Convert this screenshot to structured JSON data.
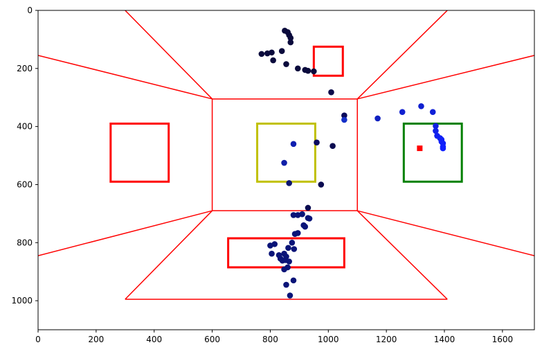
{
  "chart_data": {
    "type": "scatter",
    "title": "",
    "xlabel": "",
    "ylabel": "",
    "xlim": [
      0,
      1710
    ],
    "ylim": [
      1100,
      0
    ],
    "y_inverted": true,
    "grid": false,
    "xticks": [
      0,
      200,
      400,
      600,
      800,
      1000,
      1200,
      1400,
      1600
    ],
    "yticks": [
      0,
      200,
      400,
      600,
      800,
      1000
    ],
    "room_lines": {
      "color": "#ff0000",
      "segments": [
        [
          [
            0,
            155
          ],
          [
            600,
            305
          ]
        ],
        [
          [
            0,
            845
          ],
          [
            600,
            690
          ]
        ],
        [
          [
            300,
            0
          ],
          [
            600,
            305
          ]
        ],
        [
          [
            1410,
            0
          ],
          [
            1100,
            305
          ]
        ],
        [
          [
            1710,
            155
          ],
          [
            1100,
            305
          ]
        ],
        [
          [
            1710,
            845
          ],
          [
            1100,
            690
          ]
        ],
        [
          [
            300,
            995
          ],
          [
            600,
            690
          ]
        ],
        [
          [
            1410,
            995
          ],
          [
            1100,
            690
          ]
        ],
        [
          [
            300,
            995
          ],
          [
            1410,
            995
          ]
        ],
        [
          [
            600,
            305
          ],
          [
            1100,
            305
          ]
        ],
        [
          [
            600,
            690
          ],
          [
            1100,
            690
          ]
        ],
        [
          [
            600,
            305
          ],
          [
            600,
            690
          ]
        ],
        [
          [
            1100,
            305
          ],
          [
            1100,
            690
          ]
        ]
      ]
    },
    "target_boxes": [
      {
        "color": "#ff0000",
        "x0": 250,
        "y0": 390,
        "x1": 450,
        "y1": 590
      },
      {
        "color": "#ff0000",
        "x0": 950,
        "y0": 125,
        "x1": 1050,
        "y1": 225
      },
      {
        "color": "#ff0000",
        "x0": 655,
        "y0": 785,
        "x1": 1055,
        "y1": 885
      },
      {
        "color": "#c0c000",
        "x0": 755,
        "y0": 390,
        "x1": 955,
        "y1": 590
      },
      {
        "color": "#008000",
        "x0": 1260,
        "y0": 390,
        "x1": 1460,
        "y1": 590
      }
    ],
    "marker": {
      "color": "#ff0000",
      "shape": "square",
      "x": 1315,
      "y": 475
    },
    "points": [
      {
        "x": 850,
        "y": 70,
        "color": "#0a0a3c"
      },
      {
        "x": 860,
        "y": 75,
        "color": "#0a0a3c"
      },
      {
        "x": 865,
        "y": 85,
        "color": "#0a0a3c"
      },
      {
        "x": 870,
        "y": 95,
        "color": "#0a0a3c"
      },
      {
        "x": 870,
        "y": 110,
        "color": "#0a0a3c"
      },
      {
        "x": 840,
        "y": 140,
        "color": "#0a0a3c"
      },
      {
        "x": 805,
        "y": 145,
        "color": "#0a0a3c"
      },
      {
        "x": 790,
        "y": 148,
        "color": "#0a0a3c"
      },
      {
        "x": 770,
        "y": 150,
        "color": "#0a0a3c"
      },
      {
        "x": 810,
        "y": 172,
        "color": "#0a0a3c"
      },
      {
        "x": 855,
        "y": 185,
        "color": "#0a0a3c"
      },
      {
        "x": 895,
        "y": 200,
        "color": "#0a0a3c"
      },
      {
        "x": 920,
        "y": 205,
        "color": "#0a0a3c"
      },
      {
        "x": 930,
        "y": 208,
        "color": "#0a0a3c"
      },
      {
        "x": 950,
        "y": 210,
        "color": "#0a0a3c"
      },
      {
        "x": 1010,
        "y": 282,
        "color": "#0a0a4a"
      },
      {
        "x": 1055,
        "y": 362,
        "color": "#0a0a5a"
      },
      {
        "x": 1055,
        "y": 377,
        "color": "#1530c8"
      },
      {
        "x": 1170,
        "y": 372,
        "color": "#1020c0"
      },
      {
        "x": 1255,
        "y": 350,
        "color": "#1020d0"
      },
      {
        "x": 1320,
        "y": 330,
        "color": "#1020d0"
      },
      {
        "x": 1360,
        "y": 350,
        "color": "#1020d8"
      },
      {
        "x": 1370,
        "y": 398,
        "color": "#1020e0"
      },
      {
        "x": 1370,
        "y": 415,
        "color": "#1020e8"
      },
      {
        "x": 1375,
        "y": 432,
        "color": "#1020f0"
      },
      {
        "x": 1385,
        "y": 440,
        "color": "#1020f0"
      },
      {
        "x": 1390,
        "y": 445,
        "color": "#1020f8"
      },
      {
        "x": 1395,
        "y": 458,
        "color": "#1020f8"
      },
      {
        "x": 1395,
        "y": 470,
        "color": "#1020ff"
      },
      {
        "x": 1390,
        "y": 452,
        "color": "#1020f8"
      },
      {
        "x": 1395,
        "y": 475,
        "color": "#1020ff"
      },
      {
        "x": 880,
        "y": 460,
        "color": "#1020b0"
      },
      {
        "x": 960,
        "y": 455,
        "color": "#0a0a60"
      },
      {
        "x": 1015,
        "y": 467,
        "color": "#0a0a50"
      },
      {
        "x": 848,
        "y": 525,
        "color": "#1020a8"
      },
      {
        "x": 865,
        "y": 595,
        "color": "#0a1470"
      },
      {
        "x": 975,
        "y": 600,
        "color": "#0a0a50"
      },
      {
        "x": 930,
        "y": 680,
        "color": "#0a0a50"
      },
      {
        "x": 880,
        "y": 705,
        "color": "#0a1478"
      },
      {
        "x": 895,
        "y": 705,
        "color": "#0a1478"
      },
      {
        "x": 910,
        "y": 702,
        "color": "#0a1478"
      },
      {
        "x": 930,
        "y": 715,
        "color": "#0a1478"
      },
      {
        "x": 935,
        "y": 717,
        "color": "#0a1478"
      },
      {
        "x": 915,
        "y": 740,
        "color": "#0a1478"
      },
      {
        "x": 920,
        "y": 745,
        "color": "#0a1478"
      },
      {
        "x": 895,
        "y": 767,
        "color": "#0a1478"
      },
      {
        "x": 885,
        "y": 770,
        "color": "#0a1478"
      },
      {
        "x": 875,
        "y": 800,
        "color": "#0a1478"
      },
      {
        "x": 815,
        "y": 805,
        "color": "#0a1478"
      },
      {
        "x": 800,
        "y": 810,
        "color": "#0a1478"
      },
      {
        "x": 882,
        "y": 822,
        "color": "#0a1478"
      },
      {
        "x": 862,
        "y": 818,
        "color": "#0a1478"
      },
      {
        "x": 805,
        "y": 838,
        "color": "#0a1478"
      },
      {
        "x": 830,
        "y": 843,
        "color": "#0a1478"
      },
      {
        "x": 848,
        "y": 838,
        "color": "#0a1478"
      },
      {
        "x": 855,
        "y": 848,
        "color": "#0a1478"
      },
      {
        "x": 835,
        "y": 855,
        "color": "#0a1478"
      },
      {
        "x": 842,
        "y": 862,
        "color": "#0a1478"
      },
      {
        "x": 852,
        "y": 860,
        "color": "#0a1478"
      },
      {
        "x": 865,
        "y": 865,
        "color": "#0a1478"
      },
      {
        "x": 860,
        "y": 885,
        "color": "#0a1478"
      },
      {
        "x": 848,
        "y": 892,
        "color": "#0a1478"
      },
      {
        "x": 880,
        "y": 930,
        "color": "#0a1478"
      },
      {
        "x": 855,
        "y": 945,
        "color": "#0a1478"
      },
      {
        "x": 868,
        "y": 982,
        "color": "#0a1478"
      }
    ]
  }
}
